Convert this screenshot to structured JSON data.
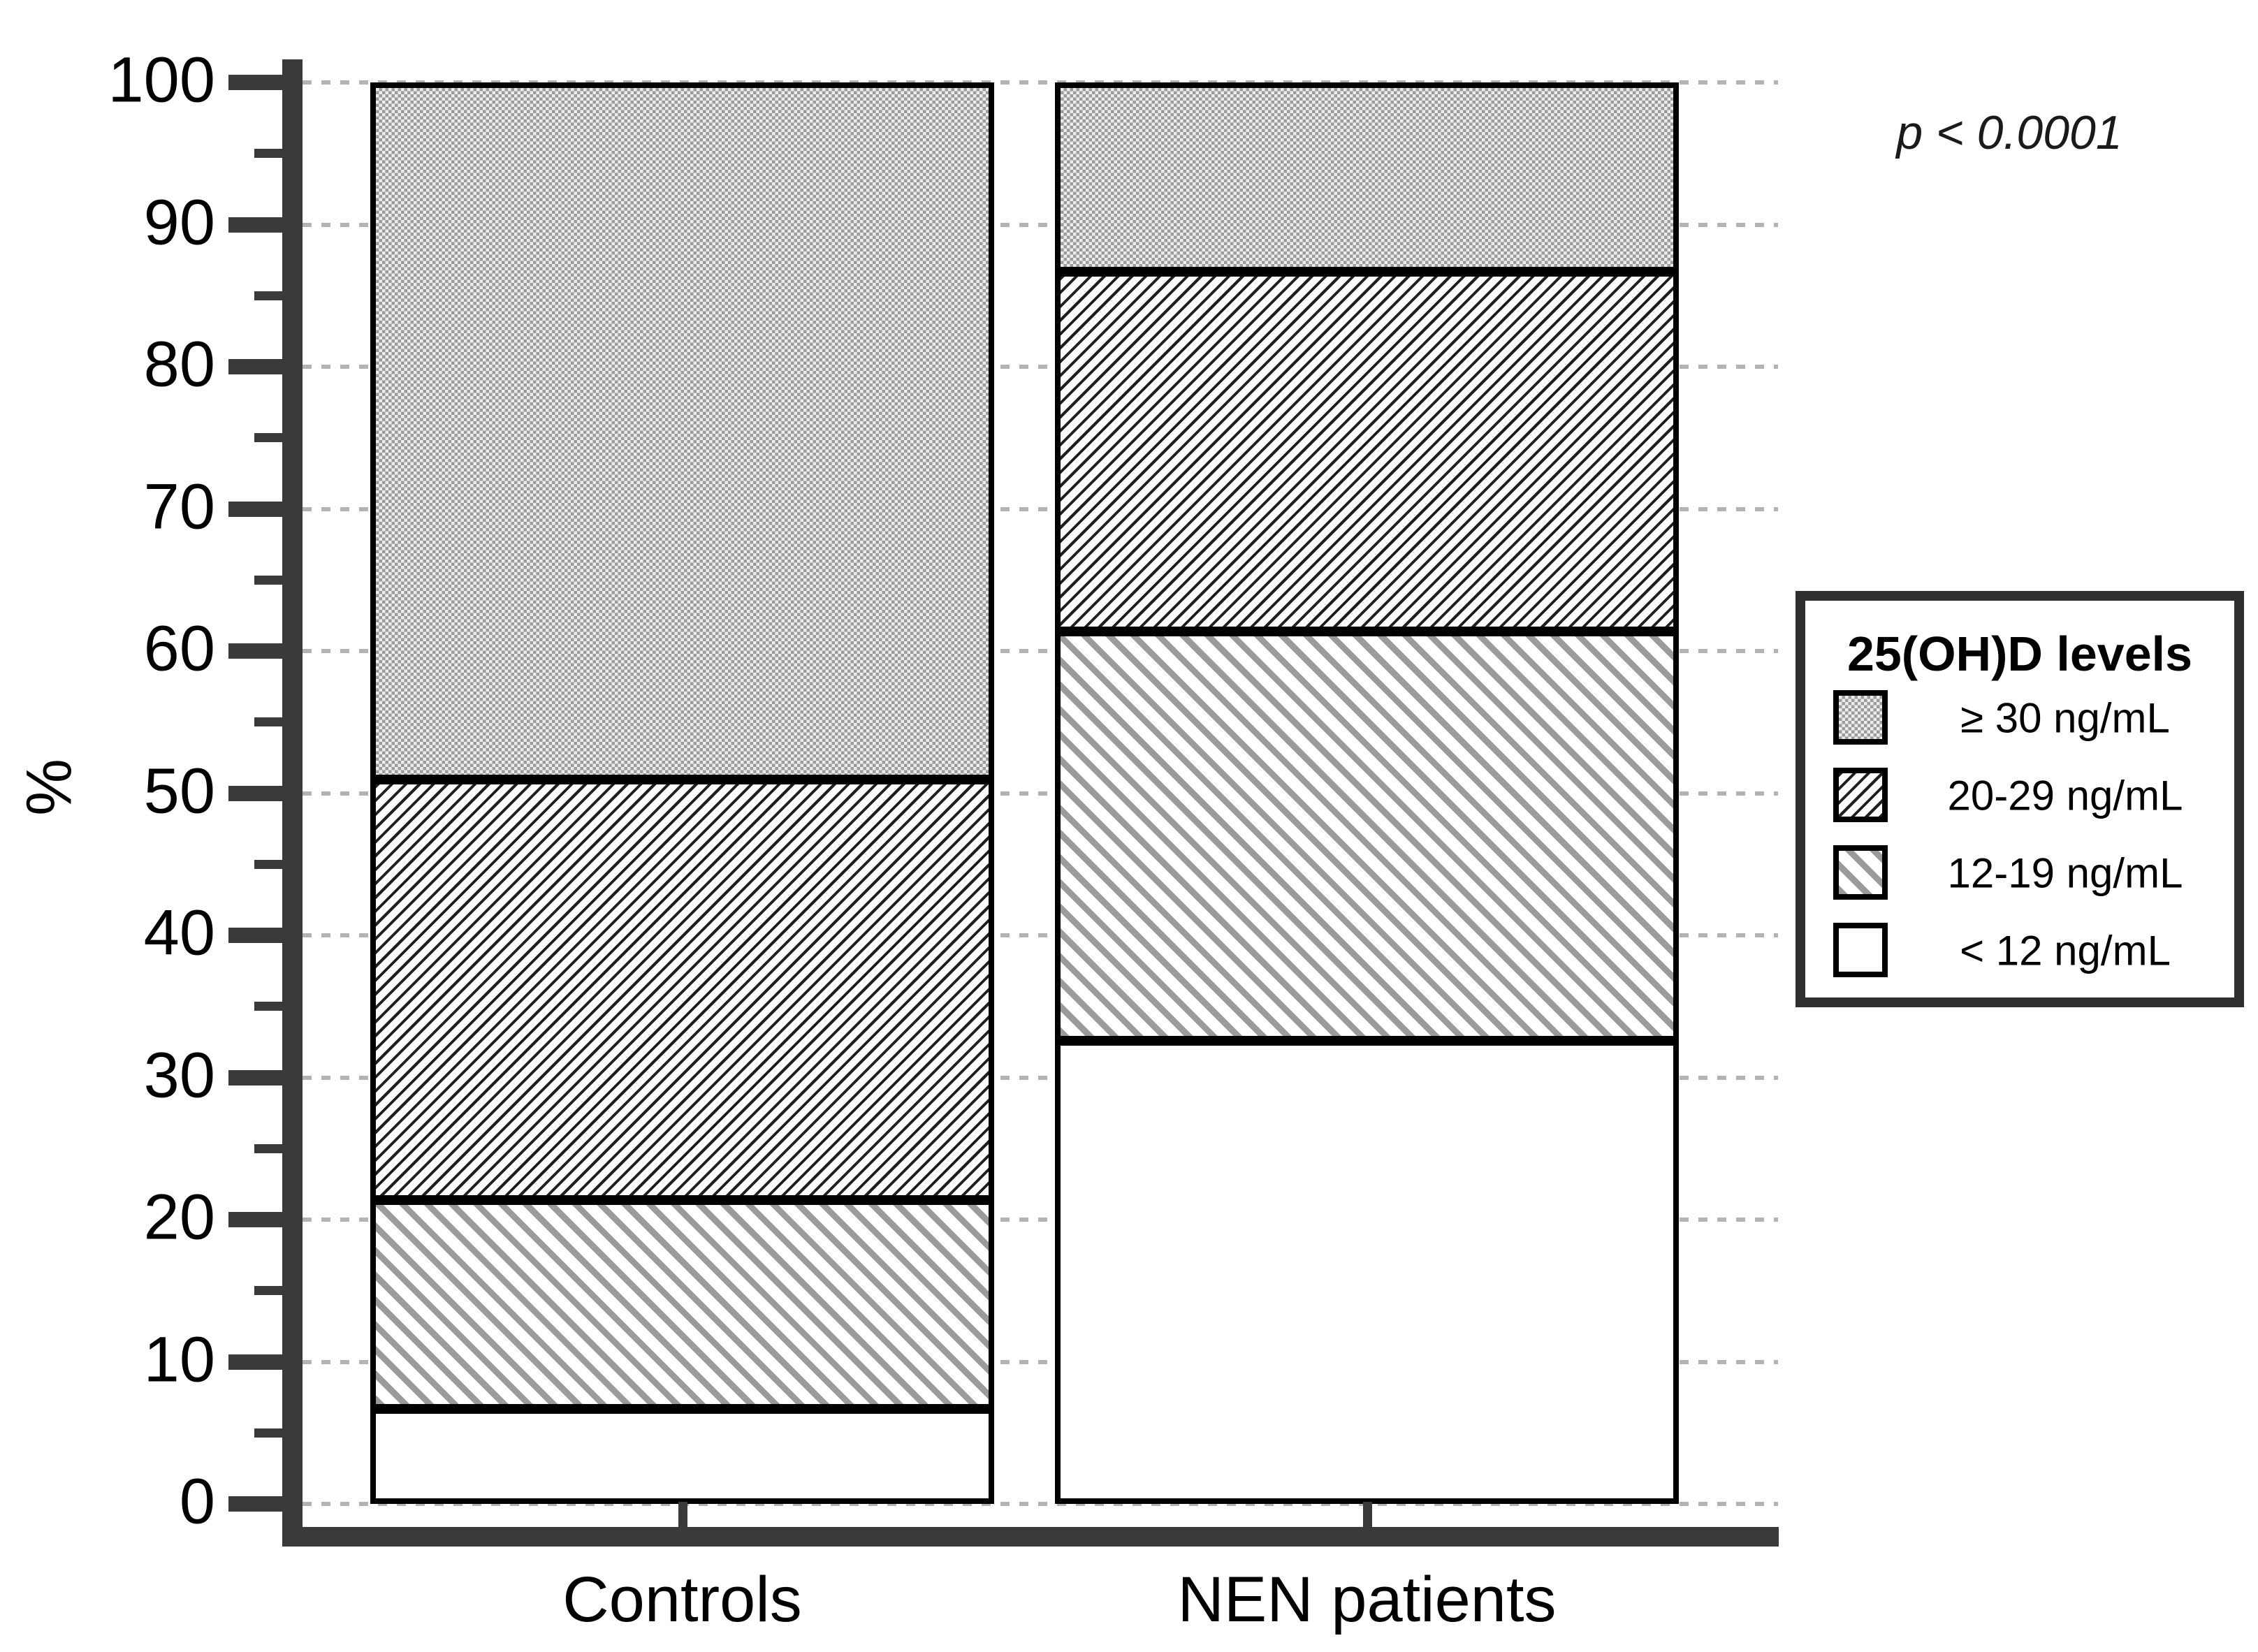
{
  "chart_data": {
    "type": "bar",
    "stacked": true,
    "title": "",
    "categories": [
      "Controls",
      "NEN patients"
    ],
    "series": [
      {
        "name": "< 12 ng/mL",
        "pattern": "solid-white",
        "values": [
          6.7,
          32.8
        ]
      },
      {
        "name": "12-19 ng/mL",
        "pattern": "diag-gray",
        "values": [
          14.8,
          29.0
        ]
      },
      {
        "name": "20-29 ng/mL",
        "pattern": "diag-fine-black",
        "values": [
          29.8,
          25.5
        ]
      },
      {
        "name": "≥ 30 ng/mL",
        "pattern": "checker-gray",
        "values": [
          48.7,
          12.7
        ]
      }
    ],
    "xlabel": "",
    "ylabel": "%",
    "ylim": [
      0,
      100
    ],
    "yticks": [
      0,
      10,
      20,
      30,
      40,
      50,
      60,
      70,
      80,
      90,
      100
    ],
    "minor_ticks": [
      5,
      15,
      25,
      35,
      45,
      55,
      65,
      75,
      85,
      95
    ],
    "grid": "horizontal dotted at major ticks",
    "annotation": "p < 0.0001",
    "legend": {
      "title": "25(OH)D levels",
      "position": "right",
      "order": [
        "≥ 30 ng/mL",
        "20-29 ng/mL",
        "12-19 ng/mL",
        "< 12 ng/mL"
      ]
    },
    "colors": {
      "axis": "#3a3a3a",
      "gridline": "#b3b3b3",
      "bar_border": "#000000",
      "checker_gray": "#9c9c9c",
      "stripe_gray": "#9b9b9b",
      "hatch_black": "#1f1f1f"
    }
  }
}
